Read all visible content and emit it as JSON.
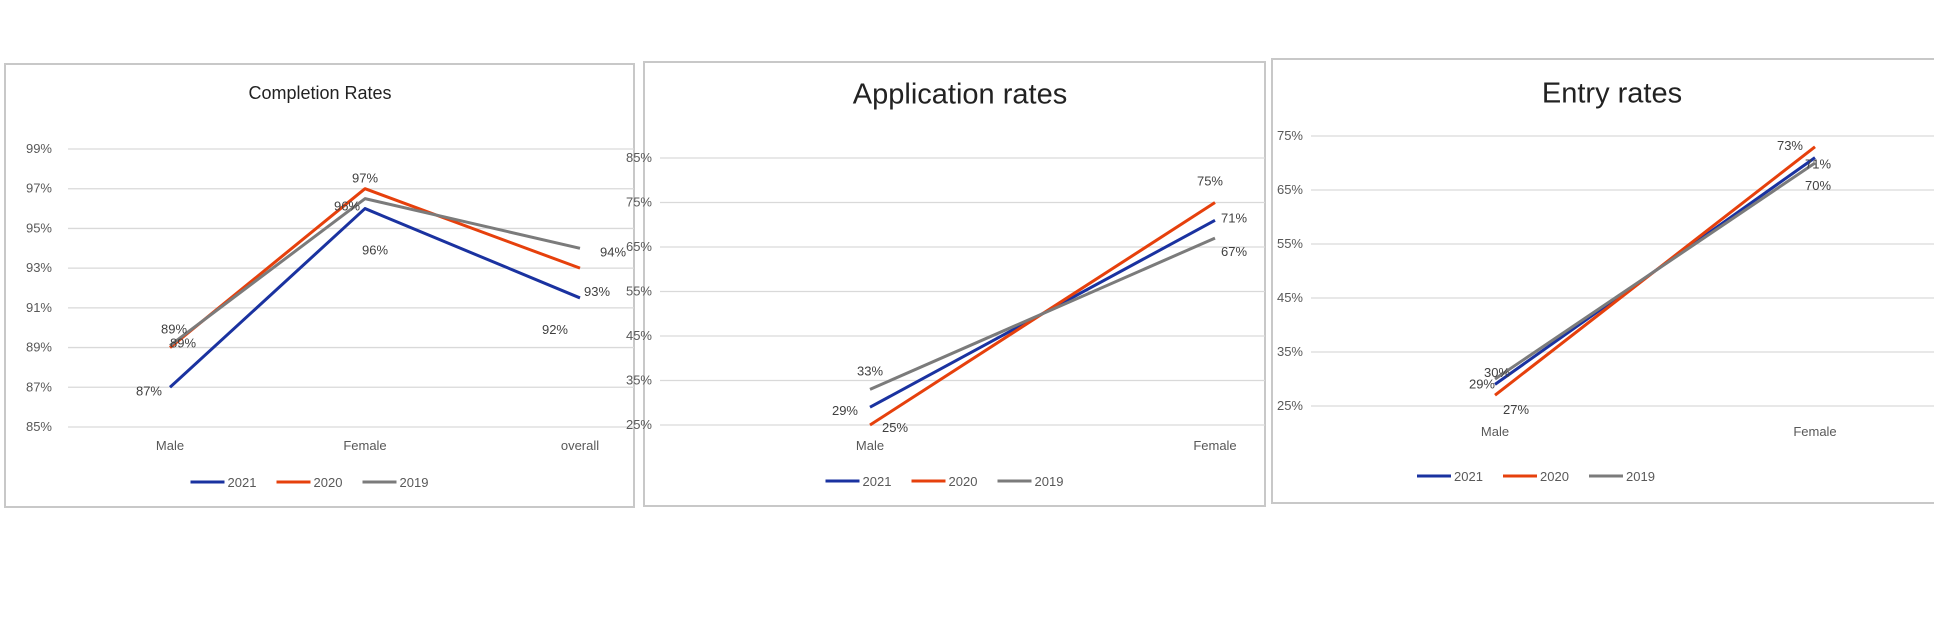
{
  "colors": {
    "2021": "#1a32a0",
    "2020": "#e6400c",
    "2019": "#7b7b7b"
  },
  "chart_data": [
    {
      "type": "line",
      "title": "Completion Rates",
      "categories": [
        "Male",
        "Female",
        "overall"
      ],
      "yticks": [
        "85%",
        "87%",
        "89%",
        "91%",
        "93%",
        "95%",
        "97%",
        "99%"
      ],
      "ylim": [
        85,
        99
      ],
      "legend": "bottom",
      "grid": true,
      "series": [
        {
          "name": "2021",
          "values": [
            87,
            96,
            91.5
          ],
          "labels": [
            "87%",
            "96%",
            "92%"
          ]
        },
        {
          "name": "2020",
          "values": [
            89,
            97,
            93
          ],
          "labels": [
            "89%",
            "97%",
            "93%"
          ]
        },
        {
          "name": "2019",
          "values": [
            89.1,
            96.5,
            94
          ],
          "labels": [
            "89%",
            "96%",
            "94%"
          ]
        }
      ]
    },
    {
      "type": "line",
      "title": "Application rates",
      "categories": [
        "Male",
        "Female"
      ],
      "yticks": [
        "25%",
        "35%",
        "45%",
        "55%",
        "65%",
        "75%",
        "85%"
      ],
      "ylim": [
        25,
        85
      ],
      "legend": "bottom",
      "grid": true,
      "series": [
        {
          "name": "2021",
          "values": [
            29,
            71
          ],
          "labels": [
            "29%",
            "71%"
          ]
        },
        {
          "name": "2020",
          "values": [
            25,
            75
          ],
          "labels": [
            "25%",
            "75%"
          ]
        },
        {
          "name": "2019",
          "values": [
            33,
            67
          ],
          "labels": [
            "33%",
            "67%"
          ]
        }
      ]
    },
    {
      "type": "line",
      "title": "Entry rates",
      "categories": [
        "Male",
        "Female"
      ],
      "yticks": [
        "25%",
        "35%",
        "45%",
        "55%",
        "65%",
        "75%"
      ],
      "ylim": [
        25,
        75
      ],
      "legend": "bottom",
      "grid": true,
      "series": [
        {
          "name": "2021",
          "values": [
            29,
            71
          ],
          "labels": [
            "29%",
            "71%"
          ]
        },
        {
          "name": "2020",
          "values": [
            27,
            73
          ],
          "labels": [
            "27%",
            "73%"
          ]
        },
        {
          "name": "2019",
          "values": [
            30,
            70
          ],
          "labels": [
            "30%",
            "70%"
          ]
        }
      ]
    }
  ]
}
